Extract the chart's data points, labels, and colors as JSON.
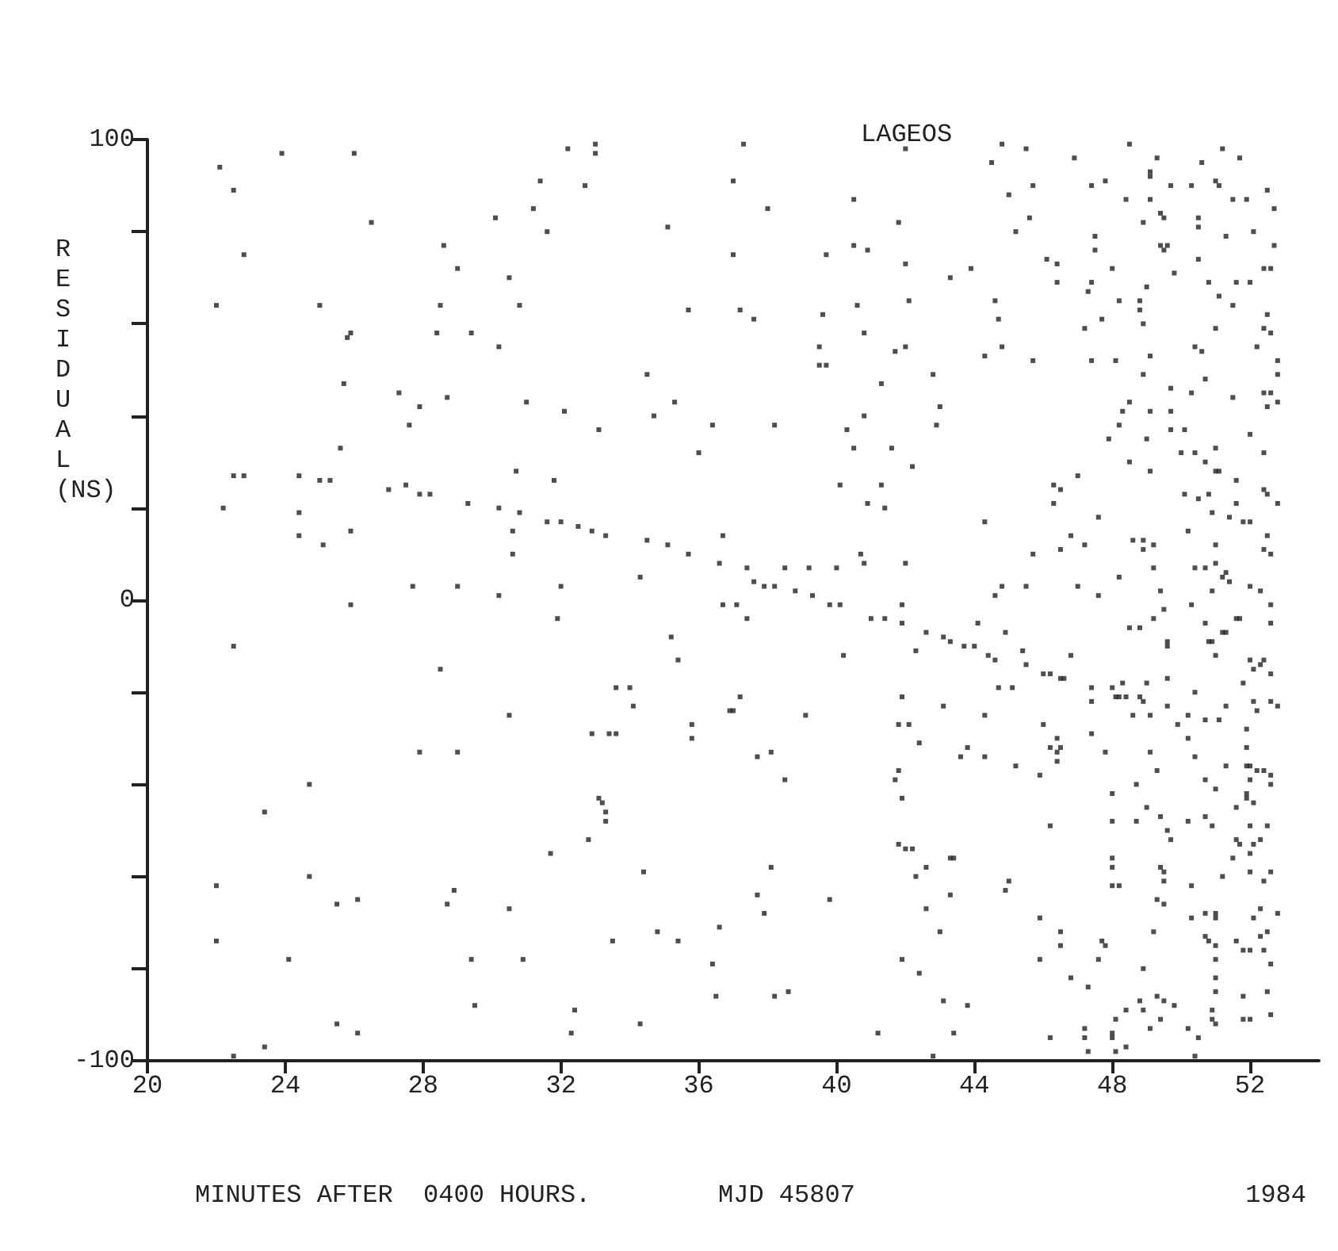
{
  "chart_data": {
    "type": "scatter",
    "title": "LAGEOS",
    "ylabel": "RESIDUAL (NS)",
    "xlabel": "MINUTES AFTER  0400 HOURS.",
    "annotations": [
      "MJD 45807",
      "1984"
    ],
    "xlim": [
      20,
      54
    ],
    "xticks": [
      20,
      24,
      28,
      32,
      36,
      40,
      44,
      48,
      52
    ],
    "ylim": [
      -100,
      100
    ],
    "yticks": [
      -100,
      {
        "value": -80,
        "label": null
      },
      {
        "value": -60,
        "label": null
      },
      {
        "value": -40,
        "label": null
      },
      {
        "value": -20,
        "label": null
      },
      0,
      {
        "value": 20,
        "label": null
      },
      {
        "value": 40,
        "label": null
      },
      {
        "value": 60,
        "label": null
      },
      {
        "value": 80,
        "label": null
      },
      100
    ],
    "grid": false,
    "marker": "square",
    "series": [
      {
        "color": "#222222",
        "x": [
          22.1,
          22.5,
          22.8,
          22.0,
          23.9,
          26.0,
          26.5,
          22.5,
          22.8,
          22.2,
          24.4,
          25.0,
          25.3,
          24.4,
          24.4,
          25.1,
          25.6,
          25.7,
          25.8,
          25.9,
          25.0,
          25.9,
          25.9,
          22.5,
          27.7,
          27.0,
          27.5,
          27.9,
          28.2,
          27.3,
          27.9,
          27.6,
          28.4,
          28.5,
          28.6,
          29.0,
          28.7,
          29.4,
          29.3,
          30.2,
          30.8,
          30.1,
          30.5,
          30.8,
          30.2,
          31.2,
          31.4,
          31.6,
          32.2,
          33.0,
          33.0,
          32.7,
          31.0,
          32.1,
          33.1,
          30.7,
          31.8,
          30.6,
          30.6,
          29.0,
          30.2,
          32.0,
          31.9,
          31.6,
          32.0,
          32.5,
          32.9,
          33.3,
          34.5,
          35.1,
          35.7,
          36.6,
          37.4,
          34.5,
          34.7,
          35.3,
          35.1,
          36.0,
          36.4,
          35.7,
          37.0,
          37.2,
          37.3,
          36.7,
          34.3,
          35.2,
          36.7,
          37.1,
          37.0,
          38.0,
          37.6,
          37.4,
          37.6,
          37.9,
          38.2,
          38.8,
          39.3,
          39.8,
          40.1,
          38.5,
          39.2,
          40.0,
          40.7,
          40.8,
          41.0,
          41.4,
          41.9,
          42.0,
          41.9,
          42.6,
          43.1,
          43.7,
          44.1,
          44.9,
          40.5,
          39.7,
          40.5,
          40.9,
          39.6,
          40.6,
          40.8,
          39.5,
          39.5,
          39.7,
          38.2,
          41.8,
          42.0,
          42.0,
          42.1,
          41.7,
          42.0,
          41.3,
          42.8,
          43.0,
          42.9,
          43.3,
          43.9,
          40.8,
          40.3,
          40.5,
          41.6,
          42.2,
          40.1,
          41.3,
          40.9,
          41.4,
          44.3,
          44.8,
          44.5,
          45.5,
          45.0,
          45.7,
          45.6,
          45.2,
          46.9,
          47.4,
          47.8,
          48.5,
          44.6,
          44.7,
          44.8,
          44.3,
          45.7,
          46.1,
          46.4,
          46.4,
          47.4,
          47.3,
          47.5,
          47.5,
          48.0,
          47.2,
          47.7,
          47.4,
          48.1,
          48.2,
          48.8,
          48.8,
          49.0,
          48.9,
          49.1,
          48.9,
          48.5,
          48.3,
          48.2,
          49.1,
          49.7,
          49.7,
          50.1,
          49.0,
          47.9,
          48.5,
          49.1,
          47.0,
          46.3,
          46.5,
          46.3,
          47.6,
          46.8,
          47.2,
          46.5,
          45.7,
          45.5,
          44.6,
          44.8,
          47.0,
          47.6,
          48.2,
          48.6,
          48.9,
          49.2,
          48.9,
          49.2,
          49.4,
          49.5,
          49.2,
          48.5,
          48.8,
          49.6,
          49.3,
          49.1,
          49.1,
          49.7,
          50.3,
          50.6,
          51.2,
          51.7,
          51.0,
          51.1,
          51.5,
          51.9,
          52.5,
          52.7,
          48.4,
          49.1,
          48.9,
          49.4,
          49.5,
          50.5,
          50.5,
          49.4,
          49.6,
          49.5,
          50.5,
          49.8,
          51.3,
          52.1,
          52.7,
          52.4,
          52.6,
          50.8,
          51.1,
          51.6,
          52.0,
          51.5,
          51.0,
          52.5,
          52.4,
          52.6,
          52.2,
          52.8,
          52.8,
          50.4,
          50.6,
          50.7,
          49.7,
          50.3,
          51.5,
          52.4,
          52.6,
          52.8,
          52.5,
          52.0,
          52.4,
          51.0,
          50.7,
          51.0,
          51.1,
          50.0,
          50.4,
          50.1,
          50.5,
          50.8,
          50.9,
          51.6,
          51.6,
          52.4,
          52.5,
          52.8,
          51.4,
          50.2,
          51.8,
          52.0,
          52.5,
          52.4,
          52.6,
          51.0,
          50.4,
          50.7,
          51.0,
          51.2,
          51.3,
          51.4,
          50.9,
          52.0,
          52.3,
          52.6,
          52.6,
          50.7,
          51.7,
          51.3,
          50.3,
          50.9,
          35.4,
          28.5,
          30.5,
          33.6,
          34.0,
          34.1,
          32.9,
          33.4,
          33.6,
          35.8,
          35.8,
          36.9,
          27.9,
          29.0,
          24.7,
          23.4,
          33.1,
          33.2,
          33.3,
          33.3,
          32.8,
          31.7,
          34.4,
          22.0,
          24.7,
          25.5,
          26.1,
          28.7,
          28.9,
          30.5,
          22.0,
          24.1,
          29.4,
          30.9,
          33.5,
          34.8,
          35.4,
          36.6,
          36.4,
          29.5,
          32.4,
          25.5,
          26.1,
          32.3,
          34.3,
          23.4,
          22.5,
          43.3,
          44.0,
          44.4,
          44.6,
          45.4,
          45.5,
          46.0,
          46.2,
          46.5,
          46.6,
          46.8,
          47.4,
          48.0,
          48.3,
          48.1,
          48.2,
          48.4,
          47.4,
          47.4,
          47.8,
          48.8,
          48.9,
          49.0,
          48.6,
          49.1,
          49.6,
          49.6,
          50.2,
          49.9,
          50.2,
          50.4,
          50.7,
          51.1,
          51.3,
          52.0,
          52.1,
          52.3,
          52.4,
          52.6,
          52.1,
          52.6,
          52.8,
          51.8,
          51.9,
          51.9,
          52.2,
          50.8,
          51.0,
          51.2,
          51.6,
          49.6,
          50.4,
          51.9,
          52.0,
          52.2,
          52.4,
          52.6,
          52.0,
          52.6,
          51.3,
          50.7,
          51.0,
          49.3,
          49.1,
          48.0,
          48.0,
          48.7,
          48.7,
          49.0,
          49.4,
          49.6,
          49.7,
          50.2,
          50.7,
          50.9,
          51.6,
          51.9,
          51.9,
          52.1,
          52.0,
          52.3,
          52.5,
          52.1,
          52.0,
          52.0,
          52.4,
          52.6,
          51.6,
          51.7,
          51.5,
          51.2,
          48.0,
          48.0,
          48.0,
          48.2,
          49.4,
          49.5,
          49.5,
          49.3,
          49.5,
          50.3,
          50.7,
          51.0,
          51.0,
          52.1,
          52.3,
          52.8,
          50.3,
          50.7,
          50.8,
          51.0,
          51.6,
          51.8,
          52.0,
          52.3,
          52.5,
          52.4,
          52.6,
          49.2,
          45.9,
          45.9,
          46.5,
          46.5,
          47.7,
          47.8,
          47.6,
          46.8,
          47.3,
          48.9,
          51.0,
          51.0,
          51.0,
          51.8,
          51.8,
          52.0,
          52.6,
          52.5,
          48.4,
          48.1,
          48.0,
          48.0,
          48.1,
          48.4,
          47.2,
          47.2,
          47.3,
          46.2,
          48.8,
          48.9,
          49.1,
          49.3,
          49.5,
          49.8,
          49.4,
          50.2,
          50.5,
          50.9,
          50.9,
          51.0,
          50.4,
          42.8,
          43.8,
          43.4,
          43.1,
          43.0,
          42.4,
          41.9,
          41.2,
          43.3,
          42.6,
          42.3,
          42.6,
          41.8,
          42.0,
          42.2,
          43.3,
          43.4,
          44.9,
          45.0,
          39.8,
          38.1,
          37.7,
          37.9,
          38.2,
          38.6,
          36.5,
          41.9,
          41.7,
          41.8,
          42.4,
          41.9,
          41.8,
          42.1,
          43.1,
          43.6,
          43.8,
          44.3,
          44.3,
          44.7,
          45.1,
          45.2,
          45.9,
          46.0,
          46.2,
          46.4,
          46.4,
          46.5,
          46.4,
          46.2,
          42.3,
          40.2,
          39.1,
          38.1,
          37.7,
          38.5,
          37.2,
          37.0
        ],
        "values": [
          94,
          89,
          75,
          64,
          97,
          97,
          82,
          27,
          27,
          20,
          27,
          26,
          26,
          19,
          14,
          12,
          33,
          47,
          57,
          58,
          64,
          15,
          -1,
          -10,
          3,
          24,
          25,
          23,
          23,
          45,
          42,
          38,
          58,
          64,
          77,
          72,
          44,
          58,
          21,
          20,
          19,
          83,
          70,
          64,
          55,
          85,
          91,
          80,
          98,
          99,
          97,
          90,
          43,
          41,
          37,
          28,
          26,
          15,
          10,
          3,
          1,
          3,
          -4,
          17,
          17,
          16,
          15,
          14,
          13,
          12,
          10,
          8,
          7,
          49,
          40,
          43,
          81,
          32,
          38,
          63,
          75,
          63,
          99,
          14,
          5,
          -8,
          -1,
          -1,
          91,
          85,
          61,
          -4,
          4,
          3,
          3,
          2,
          1,
          -1,
          -1,
          7,
          7,
          7,
          10,
          8,
          -4,
          -4,
          -5,
          8,
          -1,
          -7,
          -8,
          -10,
          -5,
          -7,
          87,
          75,
          77,
          76,
          62,
          64,
          58,
          55,
          51,
          51,
          38,
          82,
          98,
          73,
          65,
          54,
          55,
          47,
          49,
          42,
          38,
          70,
          72,
          40,
          37,
          33,
          33,
          29,
          25,
          25,
          21,
          20,
          17,
          99,
          95,
          98,
          88,
          90,
          83,
          80,
          96,
          90,
          91,
          99,
          65,
          61,
          55,
          53,
          52,
          74,
          73,
          69,
          69,
          67,
          79,
          76,
          72,
          59,
          61,
          52,
          52,
          65,
          65,
          63,
          68,
          60,
          53,
          49,
          43,
          41,
          38,
          41,
          41,
          37,
          37,
          35,
          35,
          30,
          28,
          27,
          25,
          24,
          21,
          18,
          14,
          12,
          11,
          10,
          3,
          1,
          3,
          3,
          1,
          5,
          13,
          13,
          12,
          11,
          7,
          2,
          -2,
          -4,
          -6,
          -6,
          -9,
          96,
          93,
          92,
          90,
          90,
          95,
          98,
          96,
          91,
          90,
          87,
          87,
          89,
          85,
          87,
          87,
          82,
          84,
          83,
          83,
          81,
          77,
          77,
          76,
          74,
          71,
          79,
          80,
          77,
          72,
          72,
          69,
          66,
          69,
          69,
          64,
          59,
          62,
          59,
          58,
          55,
          52,
          49,
          55,
          54,
          48,
          46,
          45,
          44,
          45,
          45,
          43,
          42,
          36,
          32,
          33,
          30,
          28,
          28,
          32,
          32,
          23,
          22,
          23,
          19,
          26,
          21,
          24,
          23,
          21,
          18,
          15,
          17,
          17,
          14,
          11,
          10,
          12,
          7,
          7,
          8,
          5,
          6,
          4,
          2,
          3,
          2,
          -1,
          -5,
          -5,
          -4,
          -7,
          -1,
          -9,
          -13,
          -15,
          -25,
          -19,
          -19,
          -23,
          -29,
          -29,
          -29,
          -27,
          -30,
          -24,
          -33,
          -33,
          -40,
          -46,
          -43,
          -44,
          -46,
          -48,
          -52,
          -55,
          -59,
          -62,
          -60,
          -66,
          -65,
          -66,
          -63,
          -67,
          -74,
          -78,
          -78,
          -78,
          -74,
          -72,
          -74,
          -71,
          -79,
          -88,
          -89,
          -92,
          -94,
          -94,
          -92,
          -97,
          -99,
          -9,
          -10,
          -12,
          -13,
          -11,
          -14,
          -16,
          -16,
          -17,
          -17,
          -12,
          -19,
          -19,
          -18,
          -21,
          -21,
          -21,
          -22,
          -29,
          -33,
          -21,
          -22,
          -18,
          -25,
          -25,
          -17,
          -23,
          -25,
          -27,
          -30,
          -20,
          -26,
          -26,
          -23,
          -13,
          -15,
          -14,
          -13,
          -16,
          -22,
          -22,
          -23,
          -18,
          -28,
          -32,
          -24,
          -9,
          -12,
          -7,
          -4,
          -10,
          -34,
          -36,
          -36,
          -37,
          -37,
          -38,
          -39,
          -40,
          -36,
          -39,
          -41,
          -37,
          -33,
          -42,
          -48,
          -40,
          -48,
          -45,
          -47,
          -50,
          -52,
          -48,
          -47,
          -49,
          -45,
          -43,
          -42,
          -44,
          -49,
          -52,
          -49,
          -53,
          -55,
          -59,
          -61,
          -59,
          -52,
          -53,
          -56,
          -60,
          -56,
          -58,
          -62,
          -62,
          -58,
          -59,
          -61,
          -65,
          -66,
          -62,
          -68,
          -68,
          -69,
          -69,
          -67,
          -68,
          -69,
          -73,
          -74,
          -75,
          -74,
          -76,
          -76,
          -73,
          -72,
          -76,
          -79,
          -72,
          -69,
          -78,
          -72,
          -75,
          -74,
          -75,
          -78,
          -82,
          -84,
          -80,
          -78,
          -82,
          -85,
          -86,
          -91,
          -91,
          -90,
          -85,
          -89,
          -91,
          -94,
          -95,
          -98,
          -97,
          -93,
          -95,
          -98,
          -95,
          -87,
          -89,
          -93,
          -86,
          -87,
          -88,
          -91,
          -93,
          -95,
          -89,
          -91,
          -92,
          -99,
          -99,
          -88,
          -94,
          -87,
          -72,
          -81,
          -78,
          -94,
          -64,
          -67,
          -60,
          -58,
          -53,
          -54,
          -54,
          -56,
          -56,
          -63,
          -61,
          -65,
          -58,
          -64,
          -68,
          -86,
          -85,
          -86,
          -43,
          -39,
          -37,
          -31,
          -21,
          -27,
          -27,
          -23,
          -34,
          -32,
          -34,
          -25,
          -19,
          -19,
          -36,
          -38,
          -27,
          -32,
          -30,
          -33,
          -32,
          -35,
          -49,
          -11,
          -12,
          -25,
          -33,
          -34,
          -39,
          -21,
          -24
        ]
      }
    ]
  }
}
